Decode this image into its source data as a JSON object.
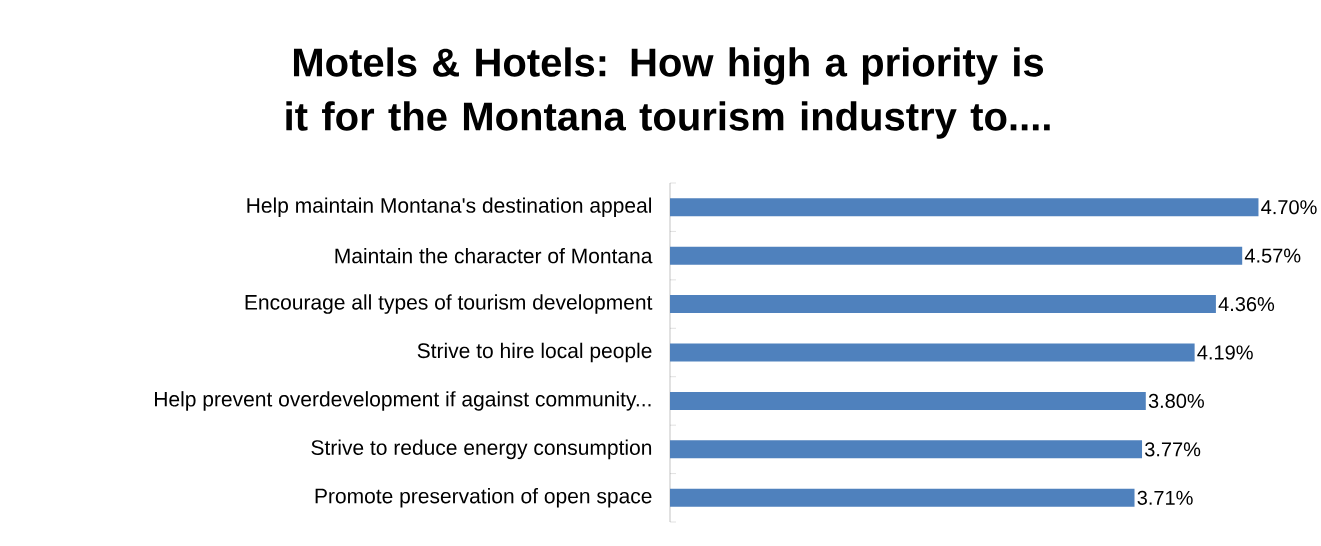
{
  "chart_data": {
    "type": "bar",
    "orientation": "horizontal",
    "title": "Motels & Hotels:  How high a priority is it for the Montana tourism industry to....",
    "categories": [
      "Help maintain Montana's destination appeal",
      "Maintain the character of Montana",
      "Encourage all types of tourism development",
      "Strive to hire local people",
      "Help prevent overdevelopment if against community...",
      "Strive to reduce energy consumption",
      "Promote preservation of open space"
    ],
    "values": [
      4.7,
      4.57,
      4.36,
      4.19,
      3.8,
      3.77,
      3.71
    ],
    "value_labels": [
      "4.70%",
      "4.57%",
      "4.36%",
      "4.19%",
      "3.80%",
      "3.77%",
      "3.71%"
    ],
    "color": "#4f81bd",
    "tick_labels": "y"
  }
}
